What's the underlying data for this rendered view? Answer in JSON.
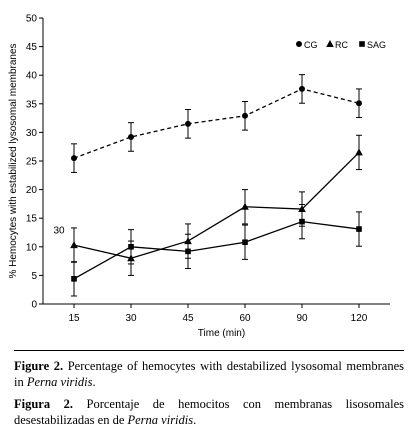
{
  "chart_data": {
    "type": "line",
    "xlabel": "Time (min)",
    "ylabel": "% Hemocytes with estabilized lysosomal membranes",
    "x": [
      "15",
      "30",
      "45",
      "60",
      "90",
      "120"
    ],
    "ylim": [
      0,
      50
    ],
    "yticks": [
      "0",
      "5",
      "10",
      "15",
      "20",
      "25",
      "30",
      "35",
      "40",
      "45",
      "50"
    ],
    "legend_position": "top-right",
    "series": [
      {
        "name": "CG",
        "marker": "circle",
        "line": "dashed",
        "values": [
          25.5,
          29.2,
          31.5,
          32.9,
          37.6,
          35.1
        ],
        "errors": [
          2.5,
          2.5,
          2.5,
          2.5,
          2.5,
          2.5
        ]
      },
      {
        "name": "RC",
        "marker": "triangle",
        "line": "solid",
        "values": [
          10.3,
          8.0,
          11.0,
          17.0,
          16.6,
          26.5
        ],
        "errors": [
          3.0,
          3.0,
          3.0,
          3.0,
          3.0,
          3.0
        ]
      },
      {
        "name": "SAG",
        "marker": "square",
        "line": "solid",
        "values": [
          4.4,
          10.0,
          9.2,
          10.8,
          14.4,
          13.1
        ],
        "errors": [
          3.0,
          3.0,
          3.0,
          3.0,
          3.0,
          3.0
        ]
      }
    ],
    "annotations": [
      {
        "text": "30",
        "x": "15",
        "y": 13
      }
    ]
  },
  "caption_en": {
    "label": "Figure 2.",
    "text_before": "Percentage of hemocytes with destabilized lysosomal membranes in ",
    "species": "Perna viridis",
    "text_after": "."
  },
  "caption_es": {
    "label": "Figura 2.",
    "text_before": "Porcentaje de hemocitos con membranas lisosomales desestabilizadas en de ",
    "species": "Perna viridis",
    "text_after": "."
  }
}
